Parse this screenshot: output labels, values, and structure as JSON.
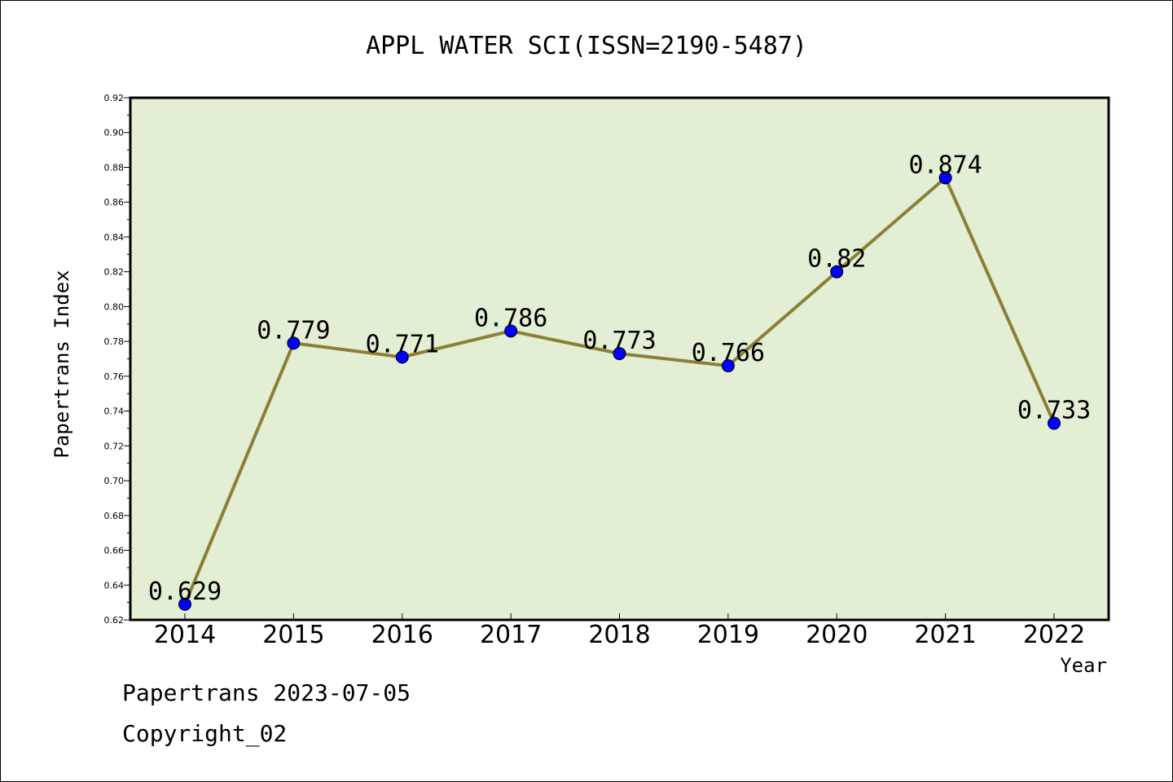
{
  "chart_data": {
    "type": "line",
    "title": "APPL WATER SCI(ISSN=2190-5487)",
    "xlabel": "Year",
    "ylabel": "Papertrans Index",
    "categories": [
      "2014",
      "2015",
      "2016",
      "2017",
      "2018",
      "2019",
      "2020",
      "2021",
      "2022"
    ],
    "values": [
      0.629,
      0.779,
      0.771,
      0.786,
      0.773,
      0.766,
      0.82,
      0.874,
      0.733
    ],
    "data_labels": [
      "0.629",
      "0.779",
      "0.771",
      "0.786",
      "0.773",
      "0.766",
      "0.82",
      "0.874",
      "0.733"
    ],
    "ylim": [
      0.62,
      0.92
    ],
    "yticks": [
      "0.62",
      "0.64",
      "0.66",
      "0.68",
      "0.70",
      "0.72",
      "0.74",
      "0.76",
      "0.78",
      "0.80",
      "0.82",
      "0.84",
      "0.86",
      "0.88",
      "0.90",
      "0.92"
    ],
    "grid": false,
    "legend": "none",
    "colors": {
      "line": "#8b7f35",
      "marker": "#0000ff",
      "plot_background": "#e2efd4",
      "axis": "#000000"
    }
  },
  "footer": {
    "date_line": "Papertrans 2023-07-05",
    "copyright": "Copyright_02"
  }
}
